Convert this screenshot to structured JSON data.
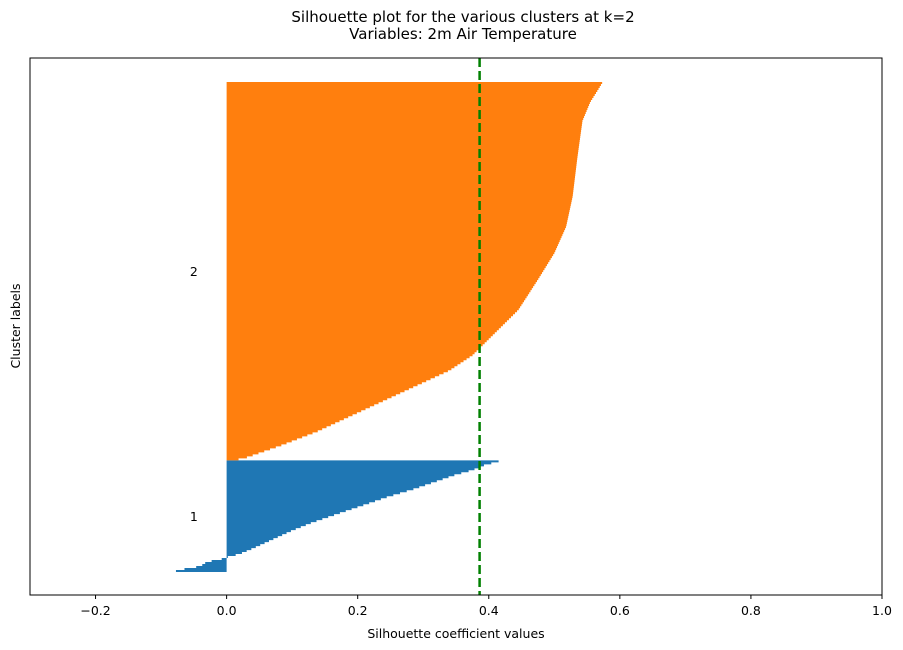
{
  "chart_data": {
    "type": "silhouette",
    "title": "Silhouette plot for the various clusters at k=2",
    "subtitle": "Variables: 2m Air Temperature",
    "xlabel": "Silhouette coefficient values",
    "ylabel": "Cluster labels",
    "xlim": [
      -0.3,
      1.0
    ],
    "xticks": [
      -0.2,
      0.0,
      0.2,
      0.4,
      0.6,
      0.8,
      1.0
    ],
    "xtick_labels": [
      "−0.2",
      "0.0",
      "0.2",
      "0.4",
      "0.6",
      "0.8",
      "1.0"
    ],
    "average_silhouette": 0.386,
    "average_line_color": "#008000",
    "clusters": [
      {
        "label": "1",
        "color": "#1f77b4",
        "samples": 85,
        "profile": [
          [
            0.0,
            0.415
          ],
          [
            0.04,
            0.39
          ],
          [
            0.08,
            0.375
          ],
          [
            0.12,
            0.35
          ],
          [
            0.18,
            0.32
          ],
          [
            0.25,
            0.285
          ],
          [
            0.32,
            0.245
          ],
          [
            0.4,
            0.205
          ],
          [
            0.48,
            0.165
          ],
          [
            0.55,
            0.13
          ],
          [
            0.62,
            0.1
          ],
          [
            0.7,
            0.07
          ],
          [
            0.78,
            0.04
          ],
          [
            0.83,
            0.02
          ],
          [
            0.86,
            0.0
          ],
          [
            0.88,
            -0.01
          ],
          [
            0.9,
            -0.03
          ],
          [
            0.94,
            -0.04
          ],
          [
            0.97,
            -0.07
          ],
          [
            1.0,
            -0.088
          ]
        ]
      },
      {
        "label": "2",
        "color": "#ff7f0e",
        "samples": 288,
        "profile": [
          [
            0.0,
            0.573
          ],
          [
            0.02,
            0.566
          ],
          [
            0.05,
            0.555
          ],
          [
            0.1,
            0.543
          ],
          [
            0.2,
            0.535
          ],
          [
            0.3,
            0.528
          ],
          [
            0.38,
            0.518
          ],
          [
            0.45,
            0.5
          ],
          [
            0.52,
            0.475
          ],
          [
            0.6,
            0.445
          ],
          [
            0.66,
            0.41
          ],
          [
            0.72,
            0.375
          ],
          [
            0.76,
            0.34
          ],
          [
            0.8,
            0.29
          ],
          [
            0.84,
            0.24
          ],
          [
            0.88,
            0.19
          ],
          [
            0.92,
            0.14
          ],
          [
            0.96,
            0.08
          ],
          [
            0.99,
            0.03
          ],
          [
            1.0,
            0.005
          ]
        ]
      }
    ]
  }
}
